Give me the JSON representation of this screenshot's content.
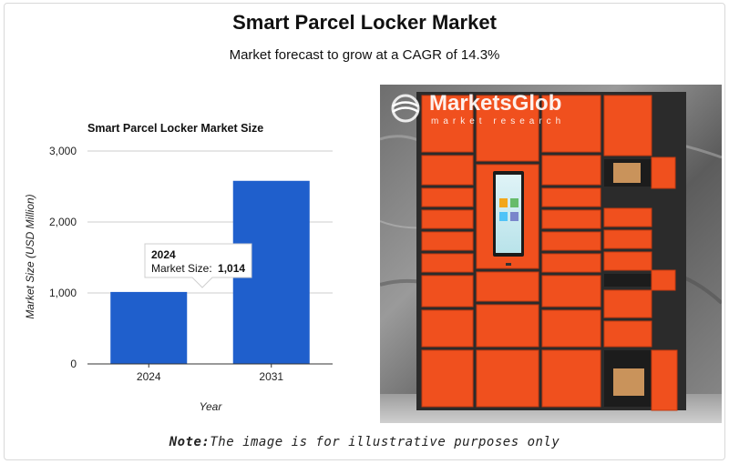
{
  "header": {
    "title": "Smart Parcel Locker Market",
    "subtitle": "Market forecast to grow at a CAGR of 14.3%"
  },
  "chart_data": {
    "type": "bar",
    "title": "Smart Parcel Locker Market Size",
    "xlabel": "Year",
    "ylabel": "Market Size (USD Million)",
    "categories": [
      "2024",
      "2031"
    ],
    "values": [
      1014,
      2580
    ],
    "ylim": [
      0,
      3000
    ],
    "yticks": [
      0,
      1000,
      2000,
      3000
    ],
    "ytick_labels": [
      "0",
      "1,000",
      "2,000",
      "3,000"
    ],
    "grid": true,
    "bar_color": "#1f5fcc",
    "tooltip": {
      "year": "2024",
      "label": "Market Size:",
      "value": "1,014"
    }
  },
  "illustration": {
    "logo_name": "MarketsGlob",
    "logo_tagline": "market research",
    "locker_color": "#f0501e"
  },
  "footer": {
    "note_label": "Note:",
    "note_text": "The image is for illustrative purposes only"
  }
}
